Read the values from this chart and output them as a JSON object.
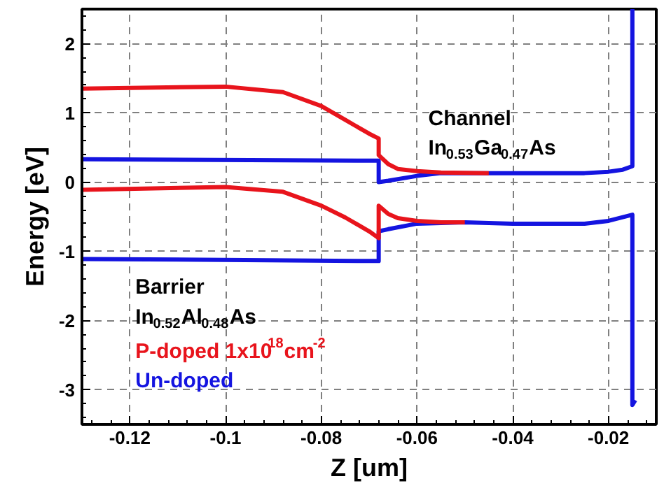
{
  "chart_data": {
    "type": "line",
    "xlabel": "Z [um]",
    "ylabel": "Energy [eV]",
    "xlim": [
      -0.13,
      -0.01
    ],
    "ylim": [
      -3.5,
      2.5
    ],
    "xticks": [
      -0.12,
      -0.1,
      -0.08,
      -0.06,
      -0.04,
      -0.02
    ],
    "yticks": [
      -3,
      -2,
      -1,
      0,
      1,
      2
    ],
    "grid": true,
    "legend": "bottom left",
    "line_style": "solid",
    "annotations": [
      "Channel",
      "In$_{0.53}$Ga$_{0.47}$As",
      "Barrier",
      "In$_{0.52}$Al$_{0.48}$As"
    ],
    "series": [
      {
        "name": "P-doped 1x10$^{18}$cm$^{-2}$",
        "color": "#e8141c",
        "x": [
          -0.13,
          -0.1,
          -0.088,
          -0.08,
          -0.075,
          -0.07,
          -0.068,
          -0.068,
          -0.066,
          -0.064,
          -0.06,
          -0.055,
          -0.045
        ],
        "values": [
          1.35,
          1.38,
          1.3,
          1.1,
          0.9,
          0.7,
          0.63,
          0.39,
          0.26,
          0.19,
          0.16,
          0.14,
          0.13
        ]
      },
      {
        "color": "#e8141c",
        "x": [
          -0.13,
          -0.1,
          -0.088,
          -0.08,
          -0.075,
          -0.07,
          -0.068,
          -0.068,
          -0.066,
          -0.064,
          -0.06,
          -0.055,
          -0.05
        ],
        "values": [
          -0.11,
          -0.07,
          -0.14,
          -0.34,
          -0.51,
          -0.71,
          -0.81,
          -0.34,
          -0.46,
          -0.52,
          -0.56,
          -0.58,
          -0.58
        ]
      },
      {
        "name": "Un-doped",
        "color": "#1414e0",
        "x": [
          -0.13,
          -0.068,
          -0.068,
          -0.066,
          -0.06,
          -0.055,
          -0.04,
          -0.025,
          -0.02,
          -0.017,
          -0.015,
          -0.015
        ],
        "values": [
          0.33,
          0.31,
          0.0,
          0.02,
          0.09,
          0.13,
          0.13,
          0.13,
          0.15,
          0.18,
          0.23,
          2.5
        ]
      },
      {
        "color": "#1414e0",
        "x": [
          -0.13,
          -0.068,
          -0.068,
          -0.066,
          -0.06,
          -0.05,
          -0.04,
          -0.025,
          -0.02,
          -0.015,
          -0.015,
          -0.0144
        ],
        "values": [
          -1.11,
          -1.14,
          -0.71,
          -0.68,
          -0.6,
          -0.58,
          -0.6,
          -0.6,
          -0.56,
          -0.47,
          -3.22,
          -3.15
        ]
      }
    ]
  }
}
